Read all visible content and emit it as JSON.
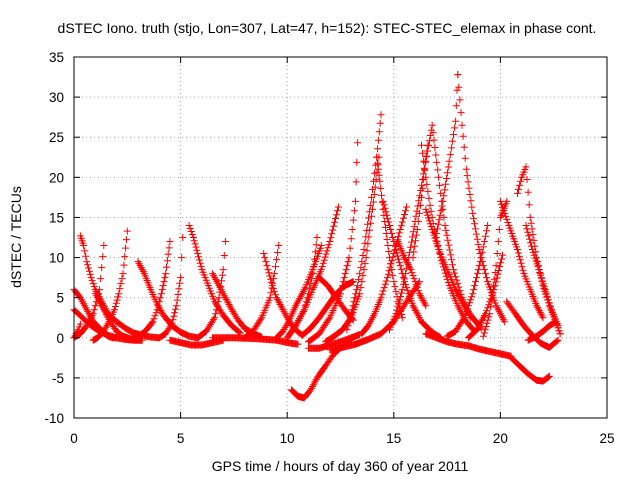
{
  "chart_data": {
    "type": "scatter",
    "title": "dSTEC Iono. truth (stjo, Lon=307, Lat=47, h=152): STEC-STEC_elemax in phase cont.",
    "xlabel": "GPS time / hours of day 360 of year 2011",
    "ylabel": "dSTEC  / TECUs",
    "xlim": [
      0,
      25
    ],
    "ylim": [
      -10,
      35
    ],
    "xticks": [
      0,
      5,
      10,
      15,
      20,
      25
    ],
    "yticks": [
      -10,
      -5,
      0,
      5,
      10,
      15,
      20,
      25,
      30,
      35
    ],
    "x_tick_labels": [
      "0",
      "5",
      "10",
      "15",
      "20",
      "25"
    ],
    "y_tick_labels": [
      "-10",
      "-5",
      "0",
      "5",
      "10",
      "15",
      "20",
      "25",
      "30",
      "35"
    ],
    "grid": true,
    "legend": "none",
    "marker": "plus",
    "color": "#ff0000",
    "series": [
      {
        "x": [
          0.0,
          0.3,
          0.6,
          0.9,
          1.2,
          1.4,
          1.6,
          1.8,
          2.0
        ],
        "y": [
          6.0,
          5.0,
          3.5,
          2.0,
          1.2,
          0.6,
          0.2,
          0.0,
          0.0
        ]
      },
      {
        "x": [
          0.0,
          0.4,
          0.8,
          1.2,
          1.6,
          2.0,
          2.4,
          2.8,
          3.2
        ],
        "y": [
          3.5,
          2.5,
          1.5,
          0.8,
          0.3,
          0.0,
          -0.2,
          -0.3,
          -0.3
        ]
      },
      {
        "x": [
          0.0,
          0.1,
          0.2,
          0.3
        ],
        "y": [
          0.0,
          0.5,
          1.0,
          1.7
        ]
      },
      {
        "x": [
          0.3,
          0.45,
          0.6,
          0.8,
          1.0,
          1.3,
          1.6,
          2.0,
          2.4,
          2.8,
          3.2,
          3.6,
          4.0
        ],
        "y": [
          12.7,
          11.5,
          9.5,
          7.5,
          6.0,
          4.5,
          3.0,
          2.0,
          1.2,
          0.6,
          0.3,
          0.1,
          0.0
        ]
      },
      {
        "x": [
          0.0,
          0.3,
          0.6,
          0.9,
          1.2,
          1.4
        ],
        "y": [
          0.0,
          0.5,
          1.5,
          3.0,
          6.0,
          11.5
        ]
      },
      {
        "x": [
          0.9,
          1.1,
          1.3,
          1.5,
          1.7,
          1.9,
          2.1,
          2.3,
          2.5
        ],
        "y": [
          -0.3,
          0.0,
          0.5,
          1.3,
          2.3,
          3.5,
          5.5,
          8.0,
          13.3
        ]
      },
      {
        "x": [
          1.0,
          1.2,
          1.4,
          1.6,
          1.8,
          2.0,
          2.3,
          2.6,
          3.0
        ],
        "y": [
          5.5,
          4.5,
          3.5,
          2.5,
          1.6,
          0.8,
          0.2,
          -0.1,
          -0.2
        ]
      },
      {
        "x": [
          3.0,
          3.3,
          3.6,
          3.9,
          4.2,
          4.6,
          5.0,
          5.4,
          5.8
        ],
        "y": [
          9.5,
          8.0,
          6.0,
          4.2,
          2.8,
          1.5,
          0.7,
          0.2,
          0.0
        ]
      },
      {
        "x": [
          2.8,
          3.1,
          3.4,
          3.7,
          3.9,
          4.1,
          4.3,
          4.5
        ],
        "y": [
          0.0,
          0.3,
          1.0,
          2.0,
          3.5,
          5.5,
          8.0,
          12.0
        ]
      },
      {
        "x": [
          5.4,
          5.6,
          5.8,
          6.0,
          6.3,
          6.6,
          7.0,
          7.4,
          7.8
        ],
        "y": [
          14.0,
          12.5,
          10.5,
          8.5,
          6.5,
          4.5,
          2.8,
          1.5,
          0.6
        ]
      },
      {
        "x": [
          4.0,
          4.3,
          4.6,
          4.8,
          5.0,
          5.1
        ],
        "y": [
          0.0,
          0.5,
          1.8,
          4.0,
          7.5,
          12.5
        ]
      },
      {
        "x": [
          4.5,
          5.0,
          5.5,
          6.0,
          6.5,
          7.0
        ],
        "y": [
          -0.3,
          -0.6,
          -0.9,
          -0.9,
          -0.6,
          -0.3
        ]
      },
      {
        "x": [
          5.8,
          6.2,
          6.6,
          6.8,
          7.0,
          7.1
        ],
        "y": [
          0.0,
          0.8,
          2.5,
          5.0,
          8.5,
          12.0
        ]
      },
      {
        "x": [
          6.5,
          6.8,
          7.1,
          7.4,
          7.7,
          8.0,
          8.4,
          8.8
        ],
        "y": [
          8.0,
          6.5,
          5.0,
          3.5,
          2.2,
          1.2,
          0.5,
          0.1
        ]
      },
      {
        "x": [
          8.9,
          9.1,
          9.3,
          9.5,
          9.8,
          10.1,
          10.4,
          10.7
        ],
        "y": [
          10.5,
          8.5,
          6.5,
          5.0,
          3.5,
          2.0,
          1.0,
          0.3
        ]
      },
      {
        "x": [
          8.0,
          8.4,
          8.8,
          9.2,
          9.4,
          9.6
        ],
        "y": [
          0.0,
          0.8,
          2.5,
          5.0,
          8.0,
          11.5
        ]
      },
      {
        "x": [
          6.5,
          7.5,
          8.5,
          9.5,
          10.0,
          10.5
        ],
        "y": [
          0.0,
          0.0,
          -0.1,
          -0.3,
          -0.6,
          -0.8
        ]
      },
      {
        "x": [
          9.5,
          9.8,
          10.1,
          10.4,
          10.8,
          11.2,
          11.6
        ],
        "y": [
          0.0,
          0.8,
          2.2,
          4.0,
          6.0,
          8.5,
          11.5
        ]
      },
      {
        "x": [
          10.0,
          10.4,
          10.8,
          11.0,
          11.2,
          11.4
        ],
        "y": [
          0.0,
          1.5,
          3.5,
          5.5,
          8.0,
          12.5
        ]
      },
      {
        "x": [
          10.0,
          10.4,
          10.8,
          11.2,
          11.6,
          12.0,
          12.4
        ],
        "y": [
          0.0,
          1.5,
          3.5,
          6.0,
          8.5,
          12.0,
          16.3
        ]
      },
      {
        "x": [
          10.2,
          10.5,
          10.8,
          11.1,
          11.4,
          11.8,
          12.2,
          12.6,
          13.0
        ],
        "y": [
          -6.5,
          -7.3,
          -7.5,
          -6.5,
          -5.0,
          -3.5,
          -2.0,
          -1.0,
          -0.2
        ]
      },
      {
        "x": [
          10.7,
          11.1,
          11.5,
          11.9,
          12.3,
          12.7,
          13.1
        ],
        "y": [
          0.3,
          1.2,
          2.5,
          4.0,
          5.5,
          6.5,
          7.0
        ]
      },
      {
        "x": [
          11.0,
          11.5,
          12.0,
          12.5,
          13.0,
          13.4
        ],
        "y": [
          -1.3,
          -1.3,
          -0.9,
          -0.5,
          0.0,
          0.4
        ]
      },
      {
        "x": [
          11.0,
          11.5,
          12.0,
          12.5,
          12.9,
          13.2,
          13.3
        ],
        "y": [
          -0.5,
          0.5,
          2.5,
          5.5,
          10.0,
          17.0,
          24.3
        ]
      },
      {
        "x": [
          11.5,
          11.9,
          12.3,
          12.7,
          13.1
        ],
        "y": [
          7.5,
          6.5,
          5.0,
          3.5,
          2.2
        ]
      },
      {
        "x": [
          11.8,
          12.2,
          12.6,
          13.0,
          13.4,
          13.7,
          14.0,
          14.3
        ],
        "y": [
          -0.5,
          0.2,
          1.0,
          2.5,
          5.5,
          10.0,
          16.0,
          22.5
        ]
      },
      {
        "x": [
          12.8,
          13.0,
          13.3,
          13.6,
          13.9,
          14.2,
          14.4
        ],
        "y": [
          1.0,
          3.0,
          6.5,
          11.0,
          16.5,
          22.5,
          27.8
        ]
      },
      {
        "x": [
          13.5,
          13.8,
          14.1,
          14.4,
          14.7,
          15.0,
          15.3,
          15.6
        ],
        "y": [
          0.5,
          1.5,
          3.0,
          5.0,
          7.5,
          10.5,
          13.5,
          16.3
        ]
      },
      {
        "x": [
          14.2,
          14.35,
          14.5,
          14.65,
          14.8,
          15.0,
          15.2,
          15.4
        ],
        "y": [
          22.5,
          19.5,
          16.0,
          13.0,
          10.0,
          7.0,
          4.5,
          2.5
        ]
      },
      {
        "x": [
          14.5,
          14.8,
          15.1,
          15.3,
          15.5,
          15.7,
          15.9,
          16.1,
          16.3,
          16.6,
          16.9,
          17.2
        ],
        "y": [
          17.0,
          14.0,
          11.0,
          9.0,
          7.0,
          5.5,
          4.0,
          3.0,
          2.0,
          1.2,
          0.5,
          0.0
        ]
      },
      {
        "x": [
          12.0,
          12.6,
          13.2,
          13.8,
          14.4,
          15.0,
          15.6,
          16.2
        ],
        "y": [
          -1.5,
          -1.2,
          -0.8,
          -0.2,
          0.5,
          2.0,
          4.5,
          7.0
        ]
      },
      {
        "x": [
          14.8,
          15.1,
          15.4,
          15.7,
          16.0,
          16.3,
          16.6
        ],
        "y": [
          1.0,
          3.0,
          6.0,
          10.0,
          14.5,
          19.0,
          24.0
        ]
      },
      {
        "x": [
          15.2,
          15.5,
          15.8,
          16.0,
          16.2,
          16.5
        ],
        "y": [
          12.0,
          10.0,
          8.5,
          7.0,
          5.5,
          4.0
        ]
      },
      {
        "x": [
          15.9,
          16.1,
          16.3,
          16.5,
          16.8,
          17.1,
          17.4,
          17.8,
          18.2,
          18.6
        ],
        "y": [
          10.0,
          13.5,
          17.5,
          22.0,
          26.5,
          20.0,
          14.0,
          8.5,
          5.0,
          2.5
        ]
      },
      {
        "x": [
          16.3,
          16.5,
          16.7,
          16.9,
          17.2,
          17.6,
          18.0,
          18.4,
          18.8
        ],
        "y": [
          24.0,
          20.0,
          16.5,
          13.5,
          10.0,
          6.5,
          4.0,
          2.0,
          0.8
        ]
      },
      {
        "x": [
          16.5,
          16.8,
          17.1,
          17.5,
          17.9,
          18.3,
          18.7,
          19.1
        ],
        "y": [
          16.0,
          13.5,
          11.0,
          8.5,
          6.0,
          4.0,
          2.5,
          1.2
        ]
      },
      {
        "x": [
          16.5,
          17.0,
          17.5,
          18.0,
          18.5,
          19.0,
          19.5,
          20.0,
          20.5
        ],
        "y": [
          0.5,
          0.0,
          -0.5,
          -0.8,
          -1.0,
          -1.4,
          -1.7,
          -2.0,
          -2.3
        ]
      },
      {
        "x": [
          17.0,
          17.3,
          17.6,
          17.9,
          18.0
        ],
        "y": [
          13.0,
          17.0,
          22.0,
          27.0,
          32.8
        ]
      },
      {
        "x": [
          18.0,
          18.2,
          18.4,
          18.7,
          19.0,
          19.4,
          19.8,
          20.2
        ],
        "y": [
          32.8,
          26.5,
          21.0,
          15.5,
          11.0,
          7.0,
          4.0,
          2.0
        ]
      },
      {
        "x": [
          17.5,
          17.9,
          18.3,
          18.7,
          19.1,
          19.4
        ],
        "y": [
          0.2,
          0.8,
          2.5,
          5.5,
          10.0,
          14.0
        ]
      },
      {
        "x": [
          18.5,
          18.9,
          19.3,
          19.7,
          20.1
        ],
        "y": [
          0.0,
          1.0,
          3.0,
          6.0,
          10.3
        ]
      },
      {
        "x": [
          19.2,
          19.5,
          19.8,
          20.0,
          20.3
        ],
        "y": [
          0.2,
          3.0,
          9.0,
          15.0,
          17.0
        ]
      },
      {
        "x": [
          20.0,
          20.4,
          20.8,
          21.1,
          21.4,
          21.7,
          22.0
        ],
        "y": [
          17.0,
          14.0,
          11.0,
          8.0,
          6.0,
          4.0,
          2.5
        ]
      },
      {
        "x": [
          20.8,
          21.0,
          21.2,
          21.4,
          21.7,
          22.0,
          22.3,
          22.6,
          22.8
        ],
        "y": [
          18.0,
          20.0,
          21.3,
          15.0,
          10.0,
          6.5,
          4.0,
          2.0,
          0.5
        ]
      },
      {
        "x": [
          21.2,
          21.5,
          21.8,
          22.1,
          22.4,
          22.7
        ],
        "y": [
          14.0,
          11.0,
          8.5,
          6.0,
          3.5,
          1.5
        ]
      },
      {
        "x": [
          20.5,
          20.9,
          21.3,
          21.7,
          22.0,
          22.3
        ],
        "y": [
          -2.5,
          -3.5,
          -4.5,
          -5.3,
          -5.4,
          -4.8
        ]
      },
      {
        "x": [
          20.3,
          20.7,
          21.1,
          21.5,
          21.9,
          22.3,
          22.7
        ],
        "y": [
          4.5,
          3.0,
          1.5,
          0.3,
          -0.7,
          -1.2,
          -0.3
        ]
      },
      {
        "x": [
          21.3,
          21.7,
          22.0,
          22.3,
          22.6,
          22.8
        ],
        "y": [
          -0.3,
          0.2,
          0.8,
          1.5,
          2.0,
          0.5
        ]
      }
    ]
  }
}
